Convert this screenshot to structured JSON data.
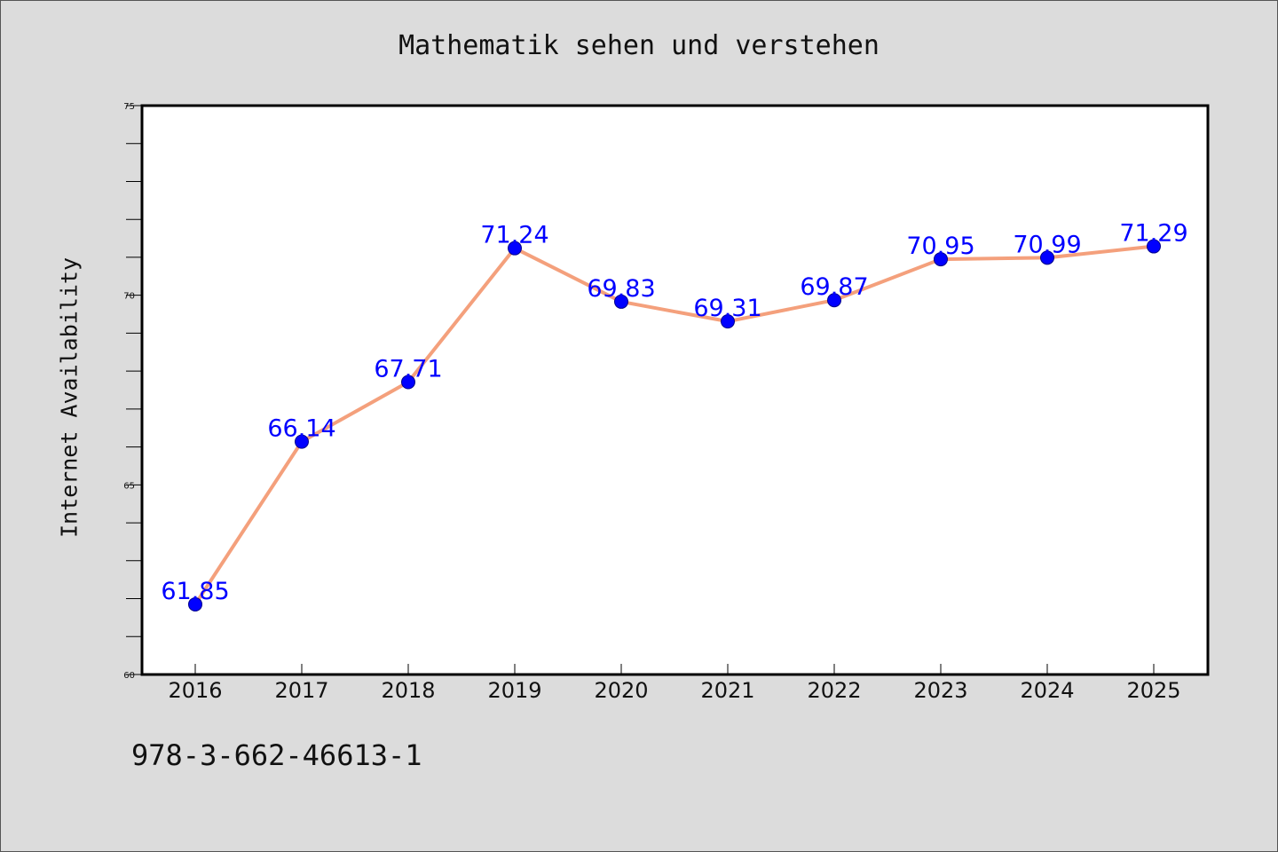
{
  "chart_data": {
    "type": "line",
    "title": "Mathematik sehen und verstehen",
    "xlabel": "",
    "ylabel": "Internet Availability",
    "categories": [
      "2016",
      "2017",
      "2018",
      "2019",
      "2020",
      "2021",
      "2022",
      "2023",
      "2024",
      "2025"
    ],
    "series": [
      {
        "values": [
          61.85,
          66.14,
          67.71,
          71.24,
          69.83,
          69.31,
          69.87,
          70.95,
          70.99,
          71.29
        ],
        "data_labels": [
          "61.85",
          "66.14",
          "67.71",
          "71.24",
          "69.83",
          "69.31",
          "69.87",
          "70.95",
          "70.99",
          "71.29"
        ]
      }
    ],
    "ylim": [
      60,
      75
    ],
    "yticks": [
      "60",
      "65",
      "70",
      "75"
    ],
    "grid": false,
    "line_color": "#f4a07c",
    "marker_color": "#0000ff",
    "label_color": "#0000ff"
  },
  "footer": {
    "isbn": "978-3-662-46613-1"
  }
}
